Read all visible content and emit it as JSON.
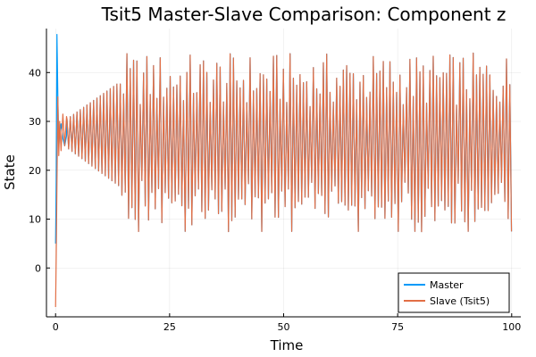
{
  "chart_data": {
    "type": "line",
    "title": "Tsit5 Master-Slave Comparison: Component z",
    "xlabel": "Time",
    "ylabel": "State",
    "xlim": [
      -2,
      102
    ],
    "ylim": [
      -10,
      49
    ],
    "xticks": [
      0,
      25,
      50,
      75,
      100
    ],
    "yticks": [
      0,
      10,
      20,
      30,
      40
    ],
    "grid": true,
    "legend_position": "bottom-right",
    "series": [
      {
        "name": "Master",
        "color": "#009af9"
      },
      {
        "name": "Slave (Tsit5)",
        "color": "#e26f46"
      }
    ],
    "transient": {
      "master": [
        [
          0,
          5
        ],
        [
          0.15,
          18
        ],
        [
          0.3,
          47.8
        ],
        [
          0.5,
          35
        ],
        [
          0.7,
          25
        ],
        [
          0.9,
          27.5
        ],
        [
          1.2,
          29.5
        ],
        [
          1.6,
          26.5
        ],
        [
          2.0,
          25
        ],
        [
          2.4,
          27
        ]
      ],
      "slave": [
        [
          0,
          -8
        ],
        [
          0.15,
          3
        ],
        [
          0.3,
          17
        ],
        [
          0.5,
          35
        ],
        [
          0.7,
          23
        ],
        [
          0.9,
          30
        ],
        [
          1.2,
          24
        ],
        [
          1.6,
          31.5
        ],
        [
          2.0,
          25
        ],
        [
          2.4,
          31
        ]
      ]
    },
    "oscillation": {
      "t_start": 2.5,
      "t_end": 100,
      "period": 0.73,
      "growth_end": 14,
      "early_center": 27.5,
      "early_amplitude": 3,
      "final_peak": 44,
      "final_trough": 6.5
    }
  }
}
